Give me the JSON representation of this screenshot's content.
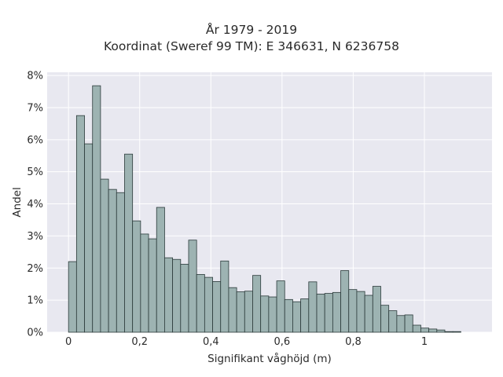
{
  "chart_data": {
    "type": "bar",
    "title": "År 1979 - 2019",
    "subtitle": "Koordinat (Sweref 99 TM): E 346631, N 6236758",
    "xlabel": "Signifikant våghöjd (m)",
    "ylabel": "Andel",
    "bin_width": 0.0225,
    "x_bin_starts": [
      0.0,
      0.0225,
      0.045,
      0.0675,
      0.09,
      0.1125,
      0.135,
      0.1575,
      0.18,
      0.2025,
      0.225,
      0.2475,
      0.27,
      0.2925,
      0.315,
      0.3375,
      0.36,
      0.3825,
      0.405,
      0.4275,
      0.45,
      0.4725,
      0.495,
      0.5175,
      0.54,
      0.5625,
      0.585,
      0.6075,
      0.63,
      0.6525,
      0.675,
      0.6975,
      0.72,
      0.7425,
      0.765,
      0.7875,
      0.81,
      0.8325,
      0.855,
      0.8775,
      0.9,
      0.9225,
      0.945,
      0.9675,
      0.99,
      1.0125,
      1.035,
      1.0575,
      1.08,
      1.1025
    ],
    "values": [
      2.2,
      6.75,
      5.87,
      7.68,
      4.77,
      4.45,
      4.35,
      5.55,
      3.47,
      3.06,
      2.91,
      3.89,
      2.32,
      2.27,
      2.12,
      2.87,
      1.8,
      1.71,
      1.58,
      2.22,
      1.39,
      1.26,
      1.28,
      1.77,
      1.13,
      1.1,
      1.6,
      1.02,
      0.95,
      1.04,
      1.57,
      1.19,
      1.21,
      1.24,
      1.92,
      1.33,
      1.27,
      1.15,
      1.43,
      0.84,
      0.67,
      0.52,
      0.54,
      0.22,
      0.13,
      0.1,
      0.07,
      0.02,
      0.02,
      0.0
    ],
    "xlim": [
      -0.06,
      1.19
    ],
    "ylim": [
      0,
      8.1
    ],
    "x_ticks": [
      0,
      0.2,
      0.4,
      0.6,
      0.8,
      1.0
    ],
    "x_tick_labels": [
      "0",
      "0,2",
      "0,4",
      "0,6",
      "0,8",
      "1"
    ],
    "y_ticks": [
      0,
      1,
      2,
      3,
      4,
      5,
      6,
      7,
      8
    ],
    "y_tick_labels": [
      "0%",
      "1%",
      "2%",
      "3%",
      "4%",
      "5%",
      "6%",
      "7%",
      "8%"
    ],
    "grid": true,
    "colors": {
      "plot_background": "#e8e8f0",
      "grid": "#ffffff",
      "bar_fill": "#9db3b2",
      "bar_stroke": "#2b3a3a"
    }
  }
}
